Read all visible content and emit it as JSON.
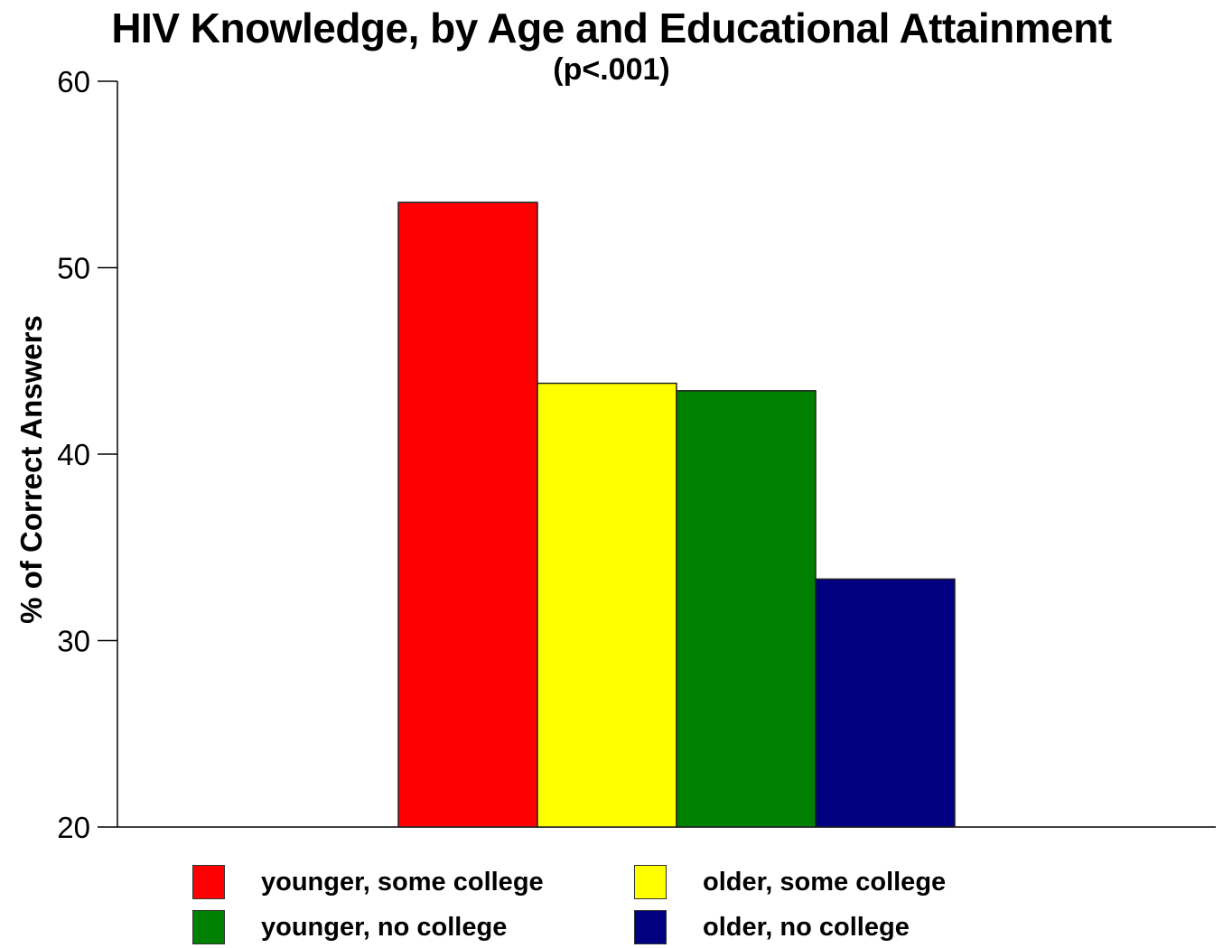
{
  "chart_data": {
    "type": "bar",
    "title": "HIV Knowledge, by Age and Educational Attainment",
    "subtitle": "(p<.001)",
    "xlabel": "",
    "ylabel": "% of Correct Answers",
    "ylim": [
      20,
      60
    ],
    "yticks": [
      "20",
      "30",
      "40",
      "50",
      "60"
    ],
    "grid": false,
    "legend_position": "bottom",
    "categories": [
      "younger, some college",
      "older, some college",
      "younger, no college",
      "older, no college"
    ],
    "series": [
      {
        "name": "younger, some college",
        "value": 53.5,
        "color": "#ff0000"
      },
      {
        "name": "older, some college",
        "value": 43.8,
        "color": "#ffff00"
      },
      {
        "name": "younger, no college",
        "value": 43.4,
        "color": "#008000"
      },
      {
        "name": "older, no college",
        "value": 33.3,
        "color": "#000080"
      }
    ]
  }
}
